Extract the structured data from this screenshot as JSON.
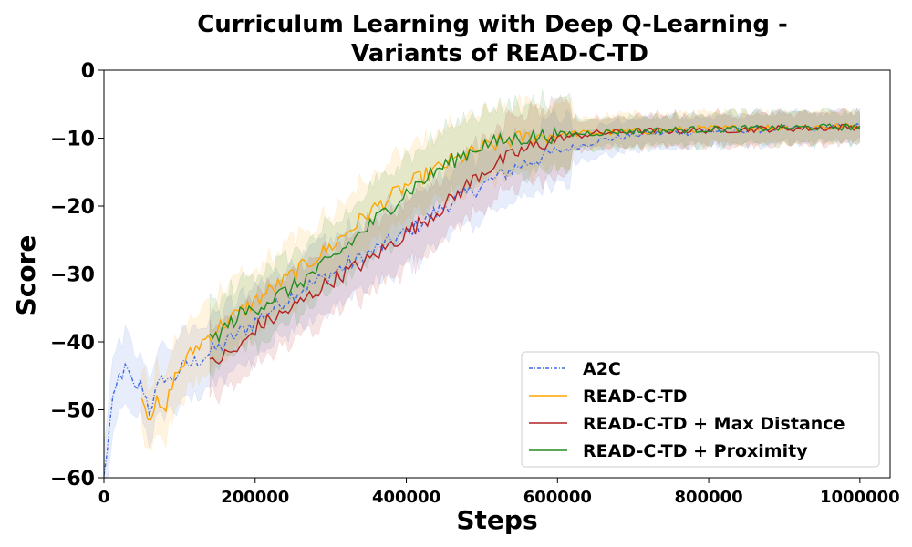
{
  "chart_data": {
    "type": "line",
    "title": [
      "Curriculum Learning with Deep Q-Learning -",
      "Variants of READ-C-TD"
    ],
    "xlabel": "Steps",
    "ylabel": "Score",
    "xlim": [
      0,
      1040000
    ],
    "ylim": [
      -60,
      0
    ],
    "xticks": [
      0,
      200000,
      400000,
      600000,
      800000,
      1000000
    ],
    "xtick_labels": [
      "0",
      "200000",
      "400000",
      "600000",
      "800000",
      "1000000"
    ],
    "yticks": [
      0,
      -10,
      -20,
      -30,
      -40,
      -50,
      -60
    ],
    "ytick_labels": [
      "0",
      "−10",
      "−20",
      "−30",
      "−40",
      "−50",
      "−60"
    ],
    "grid": false,
    "legend_position": "lower-right",
    "series": [
      {
        "name": "A2C",
        "color": "#4169e1",
        "style": "dashdot",
        "band_width": 5.0,
        "points": [
          [
            0,
            -60
          ],
          [
            10000,
            -50
          ],
          [
            20000,
            -45
          ],
          [
            30000,
            -44
          ],
          [
            40000,
            -47
          ],
          [
            50000,
            -46
          ],
          [
            60000,
            -50
          ],
          [
            70000,
            -47
          ],
          [
            80000,
            -45
          ],
          [
            90000,
            -46
          ],
          [
            100000,
            -44
          ],
          [
            120000,
            -43
          ],
          [
            150000,
            -41
          ],
          [
            200000,
            -37
          ],
          [
            250000,
            -33
          ],
          [
            300000,
            -30
          ],
          [
            350000,
            -27
          ],
          [
            400000,
            -24
          ],
          [
            450000,
            -20
          ],
          [
            500000,
            -17
          ],
          [
            550000,
            -14
          ],
          [
            600000,
            -12
          ],
          [
            650000,
            -10.5
          ],
          [
            700000,
            -9.5
          ],
          [
            750000,
            -9.2
          ],
          [
            800000,
            -9
          ],
          [
            850000,
            -8.8
          ],
          [
            900000,
            -8.6
          ],
          [
            950000,
            -8.5
          ],
          [
            1000000,
            -8.3
          ]
        ]
      },
      {
        "name": "READ-C-TD",
        "color": "#ffa500",
        "style": "solid",
        "band_width": 5.0,
        "points": [
          [
            50000,
            -48
          ],
          [
            60000,
            -51
          ],
          [
            70000,
            -49
          ],
          [
            80000,
            -51
          ],
          [
            90000,
            -46
          ],
          [
            100000,
            -44
          ],
          [
            120000,
            -41
          ],
          [
            150000,
            -38
          ],
          [
            200000,
            -34
          ],
          [
            250000,
            -30
          ],
          [
            300000,
            -26
          ],
          [
            350000,
            -21
          ],
          [
            400000,
            -17
          ],
          [
            450000,
            -14
          ],
          [
            500000,
            -11.5
          ],
          [
            550000,
            -10
          ],
          [
            600000,
            -9.5
          ],
          [
            650000,
            -9.2
          ],
          [
            700000,
            -9
          ],
          [
            750000,
            -8.8
          ],
          [
            800000,
            -8.6
          ],
          [
            850000,
            -8.5
          ],
          [
            900000,
            -8.4
          ],
          [
            950000,
            -8.3
          ],
          [
            1000000,
            -8.2
          ]
        ]
      },
      {
        "name": "READ-C-TD + Max Distance",
        "color": "#b22222",
        "style": "solid",
        "band_width": 5.0,
        "points": [
          [
            140000,
            -43.5
          ],
          [
            160000,
            -42
          ],
          [
            180000,
            -41
          ],
          [
            200000,
            -38
          ],
          [
            250000,
            -35
          ],
          [
            300000,
            -31
          ],
          [
            350000,
            -28
          ],
          [
            400000,
            -24
          ],
          [
            450000,
            -20
          ],
          [
            500000,
            -15
          ],
          [
            550000,
            -12
          ],
          [
            600000,
            -10
          ],
          [
            650000,
            -9.3
          ],
          [
            700000,
            -9
          ],
          [
            750000,
            -8.9
          ],
          [
            800000,
            -8.8
          ],
          [
            850000,
            -8.7
          ],
          [
            900000,
            -8.6
          ],
          [
            950000,
            -8.5
          ],
          [
            1000000,
            -8.3
          ]
        ]
      },
      {
        "name": "READ-C-TD + Proximity",
        "color": "#228b22",
        "style": "solid",
        "band_width": 5.0,
        "points": [
          [
            140000,
            -40
          ],
          [
            160000,
            -38
          ],
          [
            180000,
            -36
          ],
          [
            200000,
            -35
          ],
          [
            250000,
            -32
          ],
          [
            300000,
            -28
          ],
          [
            350000,
            -23
          ],
          [
            400000,
            -18
          ],
          [
            450000,
            -14
          ],
          [
            500000,
            -11
          ],
          [
            550000,
            -10
          ],
          [
            600000,
            -9.5
          ],
          [
            650000,
            -9.2
          ],
          [
            700000,
            -9
          ],
          [
            750000,
            -8.8
          ],
          [
            800000,
            -8.7
          ],
          [
            850000,
            -8.6
          ],
          [
            900000,
            -8.5
          ],
          [
            950000,
            -8.4
          ],
          [
            1000000,
            -8.3
          ]
        ]
      }
    ]
  }
}
